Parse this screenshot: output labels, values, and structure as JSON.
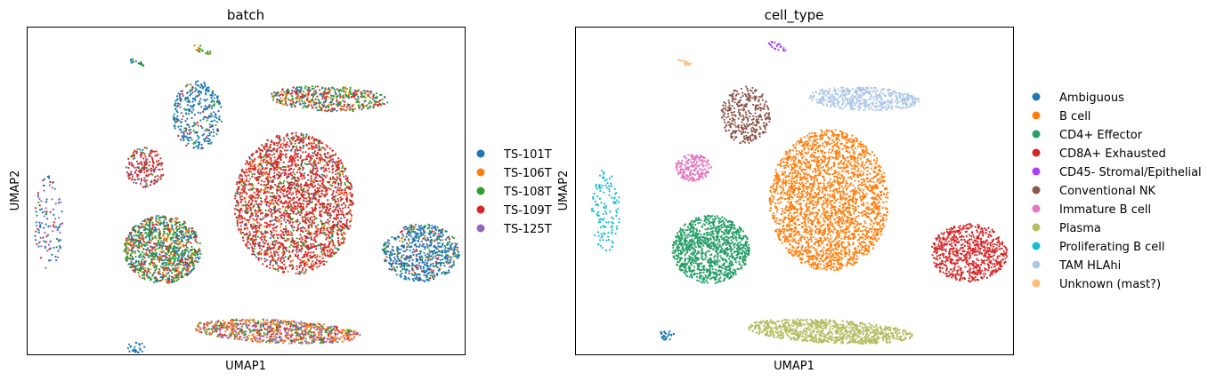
{
  "chart_data": [
    {
      "type": "scatter",
      "title": "batch",
      "xlabel": "UMAP1",
      "ylabel": "UMAP2",
      "xlim": [
        0,
        100
      ],
      "ylim": [
        0,
        100
      ],
      "grid": false,
      "legend_placement": "right",
      "legend": [
        {
          "label": "TS-101T",
          "color": "#1f77b4"
        },
        {
          "label": "TS-106T",
          "color": "#ff7f0e"
        },
        {
          "label": "TS-108T",
          "color": "#2ca02c"
        },
        {
          "label": "TS-109T",
          "color": "#d62728"
        },
        {
          "label": "TS-125T",
          "color": "#9467bd"
        }
      ],
      "clusters": [
        {
          "x": 5,
          "y": 40,
          "sx": 2,
          "sy": 9,
          "rot": 0,
          "n": 120,
          "mix": {
            "TS-101T": 0.4,
            "TS-125T": 0.3,
            "TS-109T": 0.2,
            "TS-108T": 0.1
          }
        },
        {
          "x": 25,
          "y": 2,
          "sx": 1.2,
          "sy": 1.2,
          "rot": 0,
          "n": 25,
          "mix": {
            "TS-101T": 1
          }
        },
        {
          "x": 25,
          "y": 89,
          "sx": 1.2,
          "sy": 0.5,
          "rot": -30,
          "n": 18,
          "mix": {
            "TS-108T": 0.6,
            "TS-101T": 0.4
          }
        },
        {
          "x": 40,
          "y": 93,
          "sx": 1.6,
          "sy": 0.6,
          "rot": -35,
          "n": 20,
          "mix": {
            "TS-108T": 0.6,
            "TS-106T": 0.4
          }
        },
        {
          "x": 27,
          "y": 57,
          "sx": 2.8,
          "sy": 3.8,
          "rot": 0,
          "n": 200,
          "mix": {
            "TS-109T": 0.7,
            "TS-101T": 0.1,
            "TS-108T": 0.1,
            "TS-125T": 0.1
          }
        },
        {
          "x": 39,
          "y": 73,
          "sx": 3.5,
          "sy": 6.5,
          "rot": 0,
          "n": 350,
          "mix": {
            "TS-101T": 0.8,
            "TS-108T": 0.1,
            "TS-109T": 0.1
          }
        },
        {
          "x": 69,
          "y": 78,
          "sx": 8.5,
          "sy": 2.4,
          "rot": -3,
          "n": 500,
          "mix": {
            "TS-109T": 0.35,
            "TS-108T": 0.3,
            "TS-101T": 0.2,
            "TS-106T": 0.15
          }
        },
        {
          "x": 61,
          "y": 46,
          "sx": 8.5,
          "sy": 13.5,
          "rot": 0,
          "n": 2500,
          "mix": {
            "TS-109T": 0.75,
            "TS-108T": 0.12,
            "TS-106T": 0.08,
            "TS-101T": 0.05
          }
        },
        {
          "x": 31,
          "y": 32,
          "sx": 5.5,
          "sy": 6.5,
          "rot": 0,
          "n": 1100,
          "mix": {
            "TS-108T": 0.4,
            "TS-101T": 0.25,
            "TS-109T": 0.2,
            "TS-106T": 0.15
          }
        },
        {
          "x": 90,
          "y": 31,
          "sx": 5.5,
          "sy": 5.5,
          "rot": 0,
          "n": 700,
          "mix": {
            "TS-101T": 0.75,
            "TS-108T": 0.1,
            "TS-109T": 0.1,
            "TS-106T": 0.05
          }
        },
        {
          "x": 57,
          "y": 7,
          "sx": 12,
          "sy": 2.2,
          "rot": -4,
          "n": 900,
          "mix": {
            "TS-125T": 0.35,
            "TS-106T": 0.35,
            "TS-109T": 0.15,
            "TS-108T": 0.15
          }
        }
      ]
    },
    {
      "type": "scatter",
      "title": "cell_type",
      "xlabel": "UMAP1",
      "ylabel": "UMAP2",
      "xlim": [
        0,
        100
      ],
      "ylim": [
        0,
        100
      ],
      "grid": false,
      "legend_placement": "right",
      "legend": [
        {
          "label": "Ambiguous",
          "color": "#1f77b4"
        },
        {
          "label": "B cell",
          "color": "#ff7f0e"
        },
        {
          "label": "CD4+ Effector",
          "color": "#279e68"
        },
        {
          "label": "CD8A+ Exhausted",
          "color": "#d62728"
        },
        {
          "label": "CD45- Stromal/Epithelial",
          "color": "#aa40fc"
        },
        {
          "label": "Conventional NK",
          "color": "#8c564b"
        },
        {
          "label": "Immature B cell",
          "color": "#e377c2"
        },
        {
          "label": "Plasma",
          "color": "#b5bd61"
        },
        {
          "label": "Proliferating B cell",
          "color": "#17becf"
        },
        {
          "label": "TAM HLAhi",
          "color": "#aec7e8"
        },
        {
          "label": "Unknown (mast?)",
          "color": "#ffbb78"
        }
      ],
      "clusters": [
        {
          "x": 7,
          "y": 44,
          "sx": 2,
          "sy": 8,
          "rot": 0,
          "n": 130,
          "mix": {
            "Proliferating B cell": 1
          }
        },
        {
          "x": 21,
          "y": 6,
          "sx": 1.2,
          "sy": 1.0,
          "rot": 0,
          "n": 25,
          "mix": {
            "Ambiguous": 1
          }
        },
        {
          "x": 25,
          "y": 89,
          "sx": 1.2,
          "sy": 0.5,
          "rot": -30,
          "n": 18,
          "mix": {
            "Unknown (mast?)": 1
          }
        },
        {
          "x": 46,
          "y": 94,
          "sx": 1.6,
          "sy": 0.6,
          "rot": -35,
          "n": 20,
          "mix": {
            "CD45- Stromal/Epithelial": 1
          }
        },
        {
          "x": 27,
          "y": 57,
          "sx": 2.6,
          "sy": 2.6,
          "rot": 0,
          "n": 200,
          "mix": {
            "Immature B cell": 1
          }
        },
        {
          "x": 39,
          "y": 73,
          "sx": 3.5,
          "sy": 5.5,
          "rot": 0,
          "n": 350,
          "mix": {
            "Conventional NK": 1
          }
        },
        {
          "x": 66,
          "y": 78,
          "sx": 8,
          "sy": 2.2,
          "rot": -3,
          "n": 500,
          "mix": {
            "TAM HLAhi": 1
          }
        },
        {
          "x": 58,
          "y": 47,
          "sx": 8.5,
          "sy": 13.5,
          "rot": 0,
          "n": 2500,
          "mix": {
            "B cell": 1
          }
        },
        {
          "x": 31,
          "y": 32,
          "sx": 5.5,
          "sy": 6.5,
          "rot": 0,
          "n": 1100,
          "mix": {
            "CD4+ Effector": 1
          }
        },
        {
          "x": 90,
          "y": 31,
          "sx": 5.5,
          "sy": 5.5,
          "rot": 0,
          "n": 700,
          "mix": {
            "CD8A+ Exhausted": 1
          }
        },
        {
          "x": 58,
          "y": 7,
          "sx": 12,
          "sy": 2.2,
          "rot": -4,
          "n": 900,
          "mix": {
            "Plasma": 1
          }
        }
      ]
    }
  ]
}
